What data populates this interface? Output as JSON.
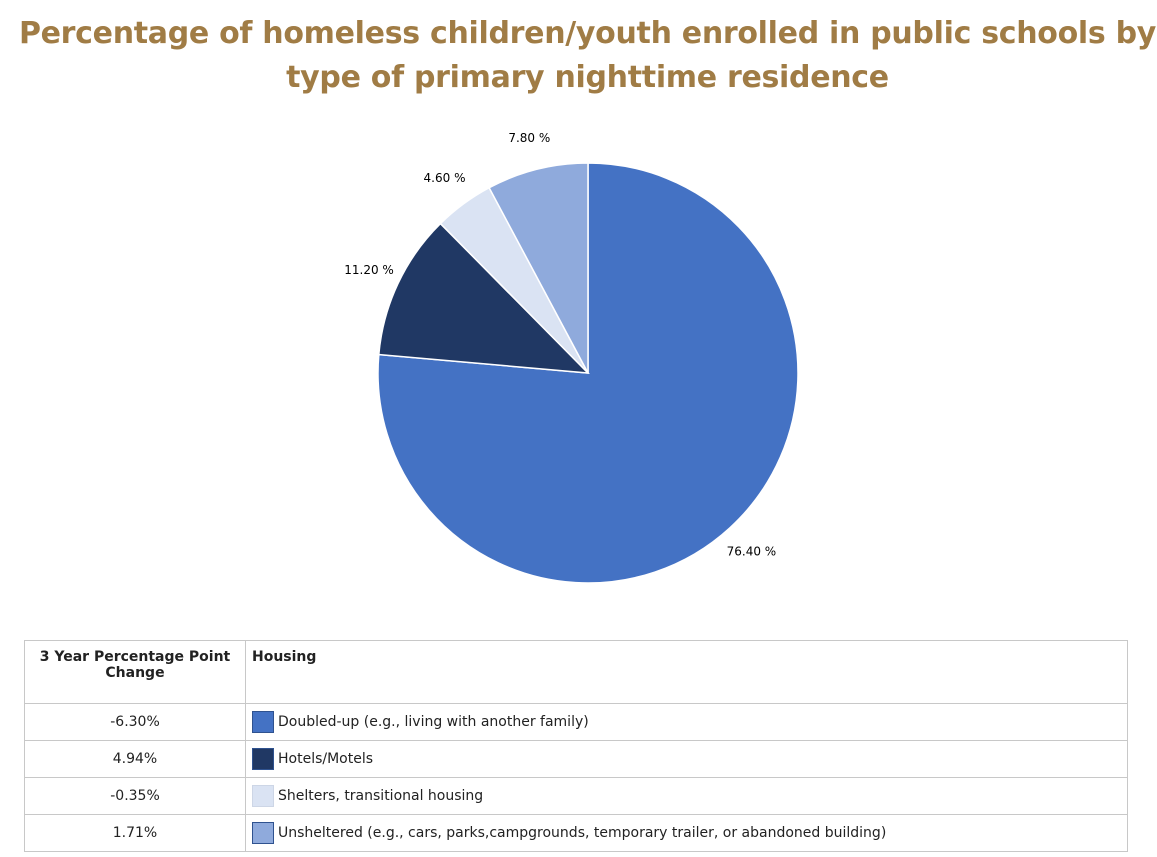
{
  "chart_data": {
    "type": "pie",
    "title": "Percentage of homeless children/youth enrolled in public schools by type of primary nighttime residence",
    "slices": [
      {
        "name": "Doubled-up (e.g., living with another family)",
        "value": 76.4,
        "label": "76.40 %",
        "color": "#4472C4"
      },
      {
        "name": "Hotels/Motels",
        "value": 11.2,
        "label": "11.20 %",
        "color": "#203864"
      },
      {
        "name": "Shelters, transitional housing",
        "value": 4.6,
        "label": "4.60 %",
        "color": "#DAE3F3"
      },
      {
        "name": "Unsheltered (e.g., cars, parks,campgrounds, temporary trailer, or abandoned building)",
        "value": 7.8,
        "label": "7.80 %",
        "color": "#8FAADC"
      }
    ],
    "start": "top",
    "direction": "clockwise"
  },
  "table": {
    "headers": [
      "3 Year Percentage Point Change",
      "Housing"
    ],
    "rows": [
      {
        "change": "-6.30%",
        "housing": "Doubled-up (e.g., living with another family)",
        "color": "#4472C4"
      },
      {
        "change": "4.94%",
        "housing": "Hotels/Motels",
        "color": "#203864"
      },
      {
        "change": "-0.35%",
        "housing": "Shelters, transitional housing",
        "color": "#DAE3F3"
      },
      {
        "change": "1.71%",
        "housing": "Unsheltered (e.g., cars, parks,campgrounds, temporary trailer, or abandoned building)",
        "color": "#8FAADC"
      }
    ]
  }
}
